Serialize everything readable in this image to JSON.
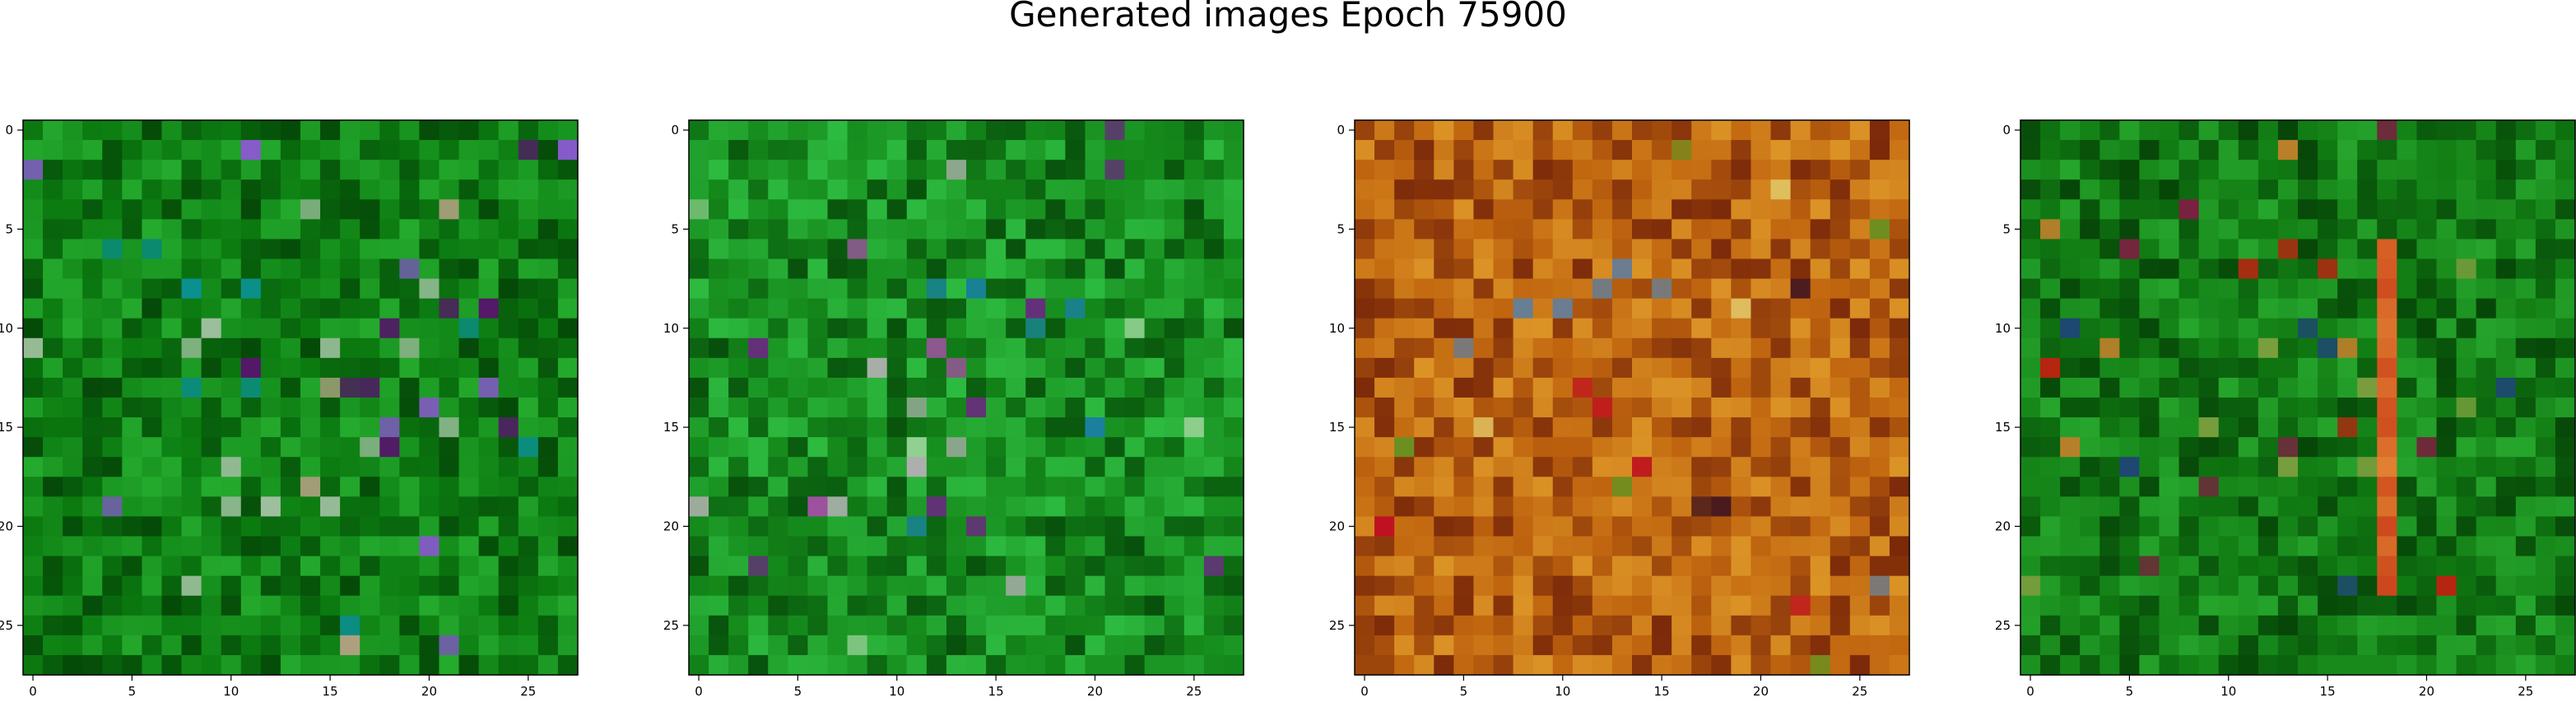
{
  "figure": {
    "title": "Generated images Epoch 75900"
  },
  "chart_data": [
    {
      "type": "heatmap",
      "name": "generated-image-1",
      "grid_size": 28,
      "palette": "green",
      "xlim": [
        -0.5,
        27.5
      ],
      "ylim": [
        27.5,
        -0.5
      ],
      "x_ticks": [
        0,
        5,
        10,
        15,
        20,
        25
      ],
      "y_ticks": [
        0,
        5,
        10,
        15,
        20,
        25
      ],
      "tick_labels": [
        "0",
        "5",
        "10",
        "15",
        "20",
        "25"
      ],
      "colors": {
        "base": "#0b7a10",
        "dark": "#033d06",
        "light": "#2fbf3a",
        "accents": [
          "#5a1070",
          "#8a5ad0",
          "#a0c0a0",
          "#0b9090",
          "#b0a080"
        ]
      }
    },
    {
      "type": "heatmap",
      "name": "generated-image-2",
      "grid_size": 28,
      "palette": "green",
      "xlim": [
        -0.5,
        27.5
      ],
      "ylim": [
        27.5,
        -0.5
      ],
      "x_ticks": [
        0,
        5,
        10,
        15,
        20,
        25
      ],
      "y_ticks": [
        0,
        5,
        10,
        15,
        20,
        25
      ],
      "tick_labels": [
        "0",
        "5",
        "10",
        "15",
        "20",
        "25"
      ],
      "colors": {
        "base": "#14881a",
        "dark": "#044208",
        "light": "#38d050",
        "accents": [
          "#6a2a80",
          "#a050a0",
          "#90d090",
          "#1a80a0",
          "#b0b0b0"
        ]
      }
    },
    {
      "type": "heatmap",
      "name": "generated-image-3",
      "grid_size": 28,
      "palette": "orange",
      "xlim": [
        -0.5,
        27.5
      ],
      "ylim": [
        27.5,
        -0.5
      ],
      "x_ticks": [
        0,
        5,
        10,
        15,
        20,
        25
      ],
      "y_ticks": [
        0,
        5,
        10,
        15,
        20,
        25
      ],
      "tick_labels": [
        "0",
        "5",
        "10",
        "15",
        "20",
        "25"
      ],
      "colors": {
        "base": "#c0650f",
        "dark": "#6a1a08",
        "light": "#e8a830",
        "accents": [
          "#3a1020",
          "#c01020",
          "#6080a0",
          "#6a9020",
          "#e0c060"
        ]
      }
    },
    {
      "type": "heatmap",
      "name": "generated-image-4",
      "grid_size": 28,
      "palette": "green",
      "xlim": [
        -0.5,
        27.5
      ],
      "ylim": [
        27.5,
        -0.5
      ],
      "x_ticks": [
        0,
        5,
        10,
        15,
        20,
        25
      ],
      "y_ticks": [
        0,
        5,
        10,
        15,
        20,
        25
      ],
      "tick_labels": [
        "0",
        "5",
        "10",
        "15",
        "20",
        "25"
      ],
      "colors": {
        "base": "#107a12",
        "dark": "#043a06",
        "light": "#30b838",
        "accents": [
          "#c02010",
          "#7a2040",
          "#e08030",
          "#204080",
          "#80a040"
        ]
      }
    }
  ]
}
